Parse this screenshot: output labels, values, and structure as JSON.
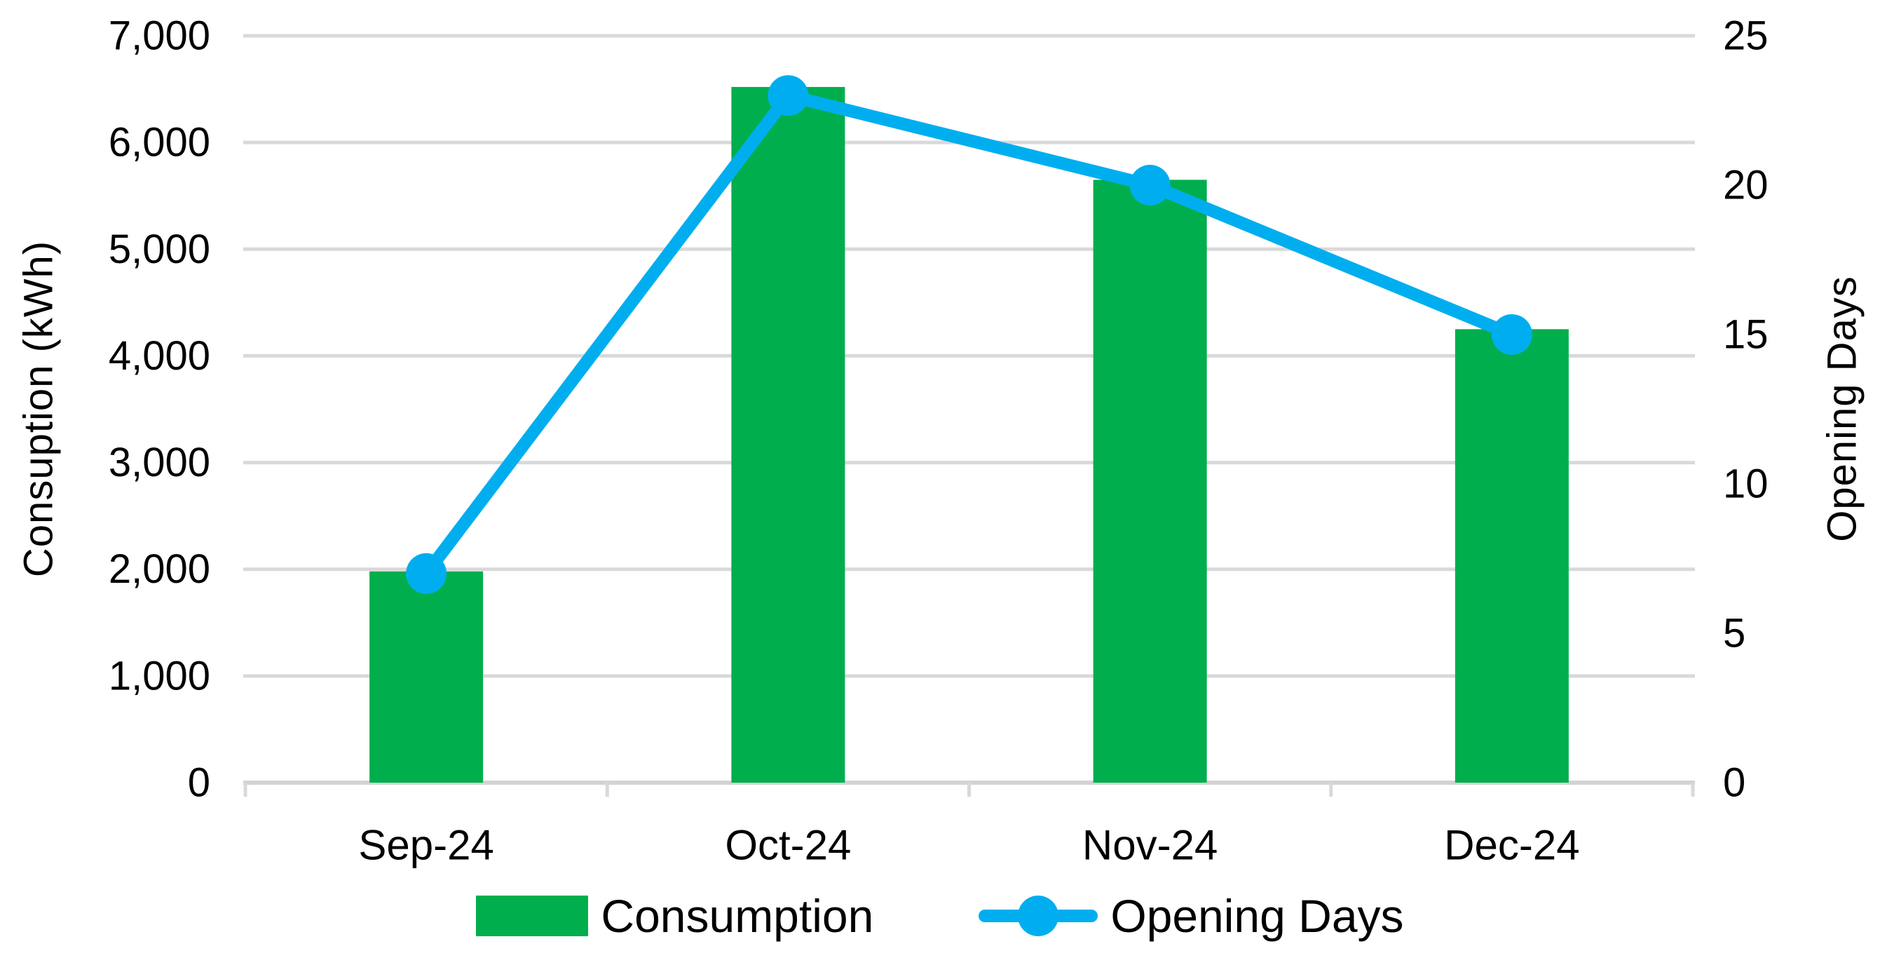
{
  "chart_data": {
    "type": "combo",
    "categories": [
      "Sep-24",
      "Oct-24",
      "Nov-24",
      "Dec-24"
    ],
    "series": [
      {
        "name": "Consumption",
        "type": "bar",
        "axis": "left",
        "color": "#00AE4D",
        "values": [
          1980,
          6520,
          5650,
          4250
        ]
      },
      {
        "name": "Opening Days",
        "type": "line",
        "axis": "right",
        "color": "#00AEEF",
        "values": [
          7,
          23,
          20,
          15
        ]
      }
    ],
    "left_axis": {
      "label": "Consuption (kWh)",
      "min": 0,
      "max": 7000,
      "step": 1000,
      "tick_labels": [
        "0",
        "1,000",
        "2,000",
        "3,000",
        "4,000",
        "5,000",
        "6,000",
        "7,000"
      ]
    },
    "right_axis": {
      "label": "Opening Days",
      "min": 0,
      "max": 25,
      "step": 5,
      "tick_labels": [
        "0",
        "5",
        "10",
        "15",
        "20",
        "25"
      ]
    },
    "legend": {
      "position": "bottom",
      "entries": [
        "Consumption",
        "Opening Days"
      ]
    },
    "grid": true,
    "gridline_color": "#D9D9D9",
    "axis_line_color": "#D3D3D3",
    "text_color": "#000000",
    "background": "#FFFFFF"
  }
}
